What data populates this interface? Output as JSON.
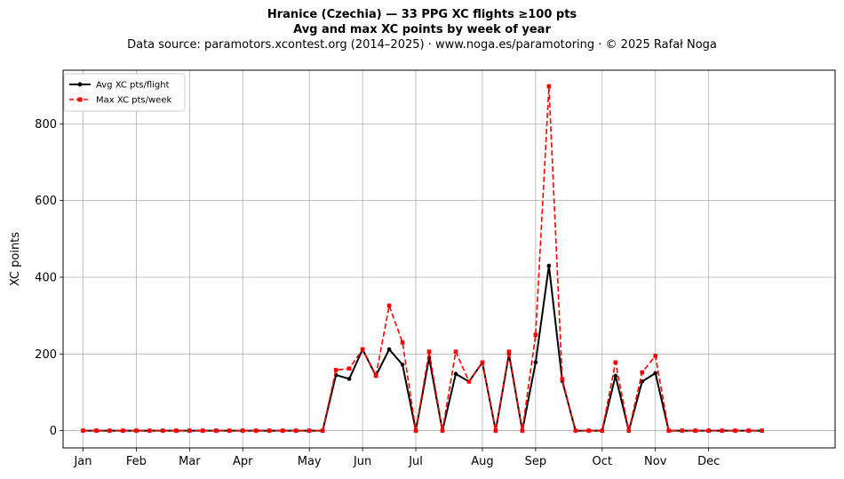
{
  "titles": {
    "line1": "Hranice (Czechia)  —  33 PPG XC flights ≥100 pts",
    "line2": "Avg and max XC points by week of year",
    "line3": "Data source: paramotors.xcontest.org (2014–2025)  ·  www.noga.es/paramotoring  ·  © 2025 Rafał Noga"
  },
  "chart_data": {
    "type": "line",
    "title": "Hranice (Czechia)  —  33 PPG XC flights ≥100 pts",
    "subtitle": "Avg and max XC points by week of year",
    "xlabel": "",
    "ylabel": "XC points",
    "x_unit": "week of year",
    "xlim": [
      -1.5,
      56.5
    ],
    "ylim": [
      -45,
      940
    ],
    "grid": true,
    "legend_position": "top-left",
    "month_ticks": [
      {
        "label": "Jan",
        "week": 0
      },
      {
        "label": "Feb",
        "week": 4
      },
      {
        "label": "Mar",
        "week": 8
      },
      {
        "label": "Apr",
        "week": 12
      },
      {
        "label": "May",
        "week": 17
      },
      {
        "label": "Jun",
        "week": 21
      },
      {
        "label": "Jul",
        "week": 25
      },
      {
        "label": "Aug",
        "week": 30
      },
      {
        "label": "Sep",
        "week": 34
      },
      {
        "label": "Oct",
        "week": 39
      },
      {
        "label": "Nov",
        "week": 43
      },
      {
        "label": "Dec",
        "week": 47
      }
    ],
    "y_ticks": [
      0,
      200,
      400,
      600,
      800
    ],
    "x": [
      0,
      1,
      2,
      3,
      4,
      5,
      6,
      7,
      8,
      9,
      10,
      11,
      12,
      13,
      14,
      15,
      16,
      17,
      18,
      19,
      20,
      21,
      22,
      23,
      24,
      25,
      26,
      27,
      28,
      29,
      30,
      31,
      32,
      33,
      34,
      35,
      36,
      37,
      38,
      39,
      40,
      41,
      42,
      43,
      44,
      45,
      46,
      47,
      48,
      49,
      50,
      51
    ],
    "series": [
      {
        "name": "Avg XC pts/flight",
        "color": "#000000",
        "style": "solid",
        "marker": "circle",
        "values": [
          0,
          0,
          0,
          0,
          0,
          0,
          0,
          0,
          0,
          0,
          0,
          0,
          0,
          0,
          0,
          0,
          0,
          0,
          0,
          145,
          135,
          212,
          143,
          212,
          172,
          0,
          190,
          0,
          148,
          128,
          178,
          0,
          200,
          0,
          178,
          430,
          130,
          0,
          0,
          0,
          143,
          0,
          128,
          150,
          0,
          0,
          0,
          0,
          0,
          0,
          0,
          0
        ]
      },
      {
        "name": "Max XC pts/week",
        "color": "#ff0000",
        "style": "dashed",
        "marker": "square",
        "values": [
          0,
          0,
          0,
          0,
          0,
          0,
          0,
          0,
          0,
          0,
          0,
          0,
          0,
          0,
          0,
          0,
          0,
          0,
          0,
          158,
          162,
          212,
          143,
          326,
          230,
          0,
          206,
          0,
          206,
          128,
          178,
          0,
          206,
          0,
          250,
          898,
          134,
          0,
          0,
          0,
          178,
          0,
          152,
          195,
          0,
          0,
          0,
          0,
          0,
          0,
          0,
          0
        ]
      }
    ]
  }
}
